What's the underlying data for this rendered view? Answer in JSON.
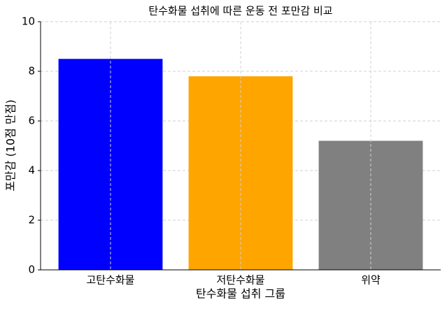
{
  "chart_data": {
    "type": "bar",
    "title": "탄수화물 섭취에 따른 운동 전 포만감 비교",
    "x_label": "탄수화물 섭취 그룹",
    "y_label": "포만감 (10점 만점)",
    "categories": [
      "고탄수화물",
      "저탄수화물",
      "위약"
    ],
    "values": [
      8.5,
      7.8,
      5.2
    ],
    "colors": [
      "#0000ff",
      "#ffa500",
      "#808080"
    ],
    "ylim": [
      0,
      10
    ],
    "yticks": [
      0,
      2,
      4,
      6,
      8,
      10
    ],
    "grid": true
  }
}
